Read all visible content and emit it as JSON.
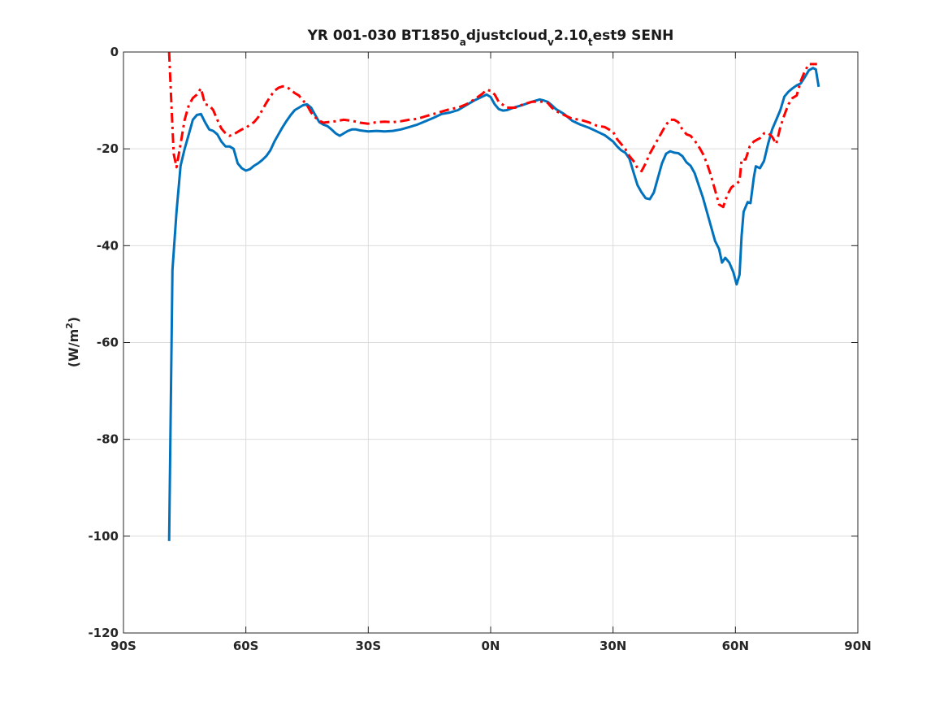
{
  "chart_data": {
    "type": "line",
    "title": {
      "prefix": "YR 001-030 BT1850",
      "sub1": "a",
      "mid1": "djustcloud",
      "sub2": "v",
      "mid2": "2.10",
      "sub3": "t",
      "suffix": "est9 SENH"
    },
    "ylabel": {
      "main": "(W/m",
      "sup": "2",
      "close": ")"
    },
    "xlim": [
      -90,
      90
    ],
    "ylim": [
      -120,
      0
    ],
    "xticks": [
      {
        "value": -90,
        "label": "90S"
      },
      {
        "value": -60,
        "label": "60S"
      },
      {
        "value": -30,
        "label": "30S"
      },
      {
        "value": 0,
        "label": "0N"
      },
      {
        "value": 30,
        "label": "30N"
      },
      {
        "value": 60,
        "label": "60N"
      },
      {
        "value": 90,
        "label": "90N"
      }
    ],
    "yticks": [
      {
        "value": 0,
        "label": "0"
      },
      {
        "value": -20,
        "label": "-20"
      },
      {
        "value": -40,
        "label": "-40"
      },
      {
        "value": -60,
        "label": "-60"
      },
      {
        "value": -80,
        "label": "-80"
      },
      {
        "value": -100,
        "label": "-100"
      },
      {
        "value": -120,
        "label": "-120"
      }
    ],
    "grid": true,
    "series": [
      {
        "color": "#0072BD",
        "dash": "solid",
        "points": [
          [
            -78.8,
            -101
          ],
          [
            -78.0,
            -45
          ],
          [
            -77.0,
            -33
          ],
          [
            -76.0,
            -23.5
          ],
          [
            -75.0,
            -20
          ],
          [
            -74.0,
            -17
          ],
          [
            -73.0,
            -14
          ],
          [
            -72.0,
            -13
          ],
          [
            -71.0,
            -12.8
          ],
          [
            -70.0,
            -14.5
          ],
          [
            -69.0,
            -16
          ],
          [
            -68.0,
            -16.3
          ],
          [
            -67.0,
            -17
          ],
          [
            -66.0,
            -18.5
          ],
          [
            -65.0,
            -19.5
          ],
          [
            -64.0,
            -19.5
          ],
          [
            -63.0,
            -20
          ],
          [
            -62.0,
            -23
          ],
          [
            -61.0,
            -24
          ],
          [
            -60.0,
            -24.5
          ],
          [
            -59.0,
            -24.2
          ],
          [
            -58.0,
            -23.5
          ],
          [
            -57.0,
            -23
          ],
          [
            -56.0,
            -22.3
          ],
          [
            -55.0,
            -21.5
          ],
          [
            -54.0,
            -20.3
          ],
          [
            -53.0,
            -18.5
          ],
          [
            -52.0,
            -17
          ],
          [
            -51.0,
            -15.5
          ],
          [
            -50.0,
            -14.2
          ],
          [
            -49.0,
            -13
          ],
          [
            -48.0,
            -12
          ],
          [
            -47.0,
            -11.5
          ],
          [
            -46.0,
            -11
          ],
          [
            -45.0,
            -10.8
          ],
          [
            -44.0,
            -11.5
          ],
          [
            -43.0,
            -13
          ],
          [
            -42.0,
            -14.5
          ],
          [
            -41.0,
            -15
          ],
          [
            -40.0,
            -15.3
          ],
          [
            -39.0,
            -16
          ],
          [
            -38.0,
            -16.8
          ],
          [
            -37.0,
            -17.3
          ],
          [
            -36.0,
            -16.8
          ],
          [
            -35.0,
            -16.3
          ],
          [
            -34.0,
            -16
          ],
          [
            -33.0,
            -16
          ],
          [
            -32.0,
            -16.2
          ],
          [
            -31.0,
            -16.3
          ],
          [
            -30.0,
            -16.4
          ],
          [
            -28.0,
            -16.3
          ],
          [
            -26.0,
            -16.4
          ],
          [
            -24.0,
            -16.3
          ],
          [
            -22.0,
            -16
          ],
          [
            -20.0,
            -15.5
          ],
          [
            -18.0,
            -15
          ],
          [
            -16.0,
            -14.3
          ],
          [
            -14.0,
            -13.6
          ],
          [
            -12.0,
            -12.8
          ],
          [
            -10.0,
            -12.5
          ],
          [
            -8.0,
            -12
          ],
          [
            -6.0,
            -11
          ],
          [
            -4.0,
            -10
          ],
          [
            -2.0,
            -9.2
          ],
          [
            -1.0,
            -8.8
          ],
          [
            0.0,
            -9.3
          ],
          [
            1.0,
            -10.8
          ],
          [
            2.0,
            -11.8
          ],
          [
            3.0,
            -12.1
          ],
          [
            4.0,
            -12
          ],
          [
            6.0,
            -11.4
          ],
          [
            8.0,
            -10.9
          ],
          [
            10.0,
            -10.3
          ],
          [
            12.0,
            -9.8
          ],
          [
            13.0,
            -10
          ],
          [
            14.0,
            -10.3
          ],
          [
            15.0,
            -11
          ],
          [
            16.0,
            -11.8
          ],
          [
            18.0,
            -12.8
          ],
          [
            20.0,
            -14.2
          ],
          [
            22.0,
            -15
          ],
          [
            24.0,
            -15.6
          ],
          [
            26.0,
            -16.4
          ],
          [
            28.0,
            -17.2
          ],
          [
            30.0,
            -18.5
          ],
          [
            31.0,
            -19.5
          ],
          [
            32.0,
            -20.3
          ],
          [
            33.0,
            -20.8
          ],
          [
            34.0,
            -22
          ],
          [
            35.0,
            -24.8
          ],
          [
            36.0,
            -27.5
          ],
          [
            37.0,
            -29
          ],
          [
            38.0,
            -30.2
          ],
          [
            39.0,
            -30.4
          ],
          [
            40.0,
            -29
          ],
          [
            41.0,
            -26
          ],
          [
            42.0,
            -23
          ],
          [
            43.0,
            -21
          ],
          [
            44.0,
            -20.5
          ],
          [
            45.0,
            -20.8
          ],
          [
            46.0,
            -20.9
          ],
          [
            47.0,
            -21.5
          ],
          [
            48.0,
            -22.8
          ],
          [
            49.0,
            -23.5
          ],
          [
            50.0,
            -25
          ],
          [
            51.0,
            -27.5
          ],
          [
            52.0,
            -30
          ],
          [
            53.0,
            -33
          ],
          [
            54.0,
            -36
          ],
          [
            55.0,
            -39
          ],
          [
            56.0,
            -40.7
          ],
          [
            56.7,
            -43.5
          ],
          [
            57.5,
            -42.5
          ],
          [
            58.5,
            -43.5
          ],
          [
            59.5,
            -45.5
          ],
          [
            60.3,
            -48
          ],
          [
            61.0,
            -46
          ],
          [
            61.5,
            -38
          ],
          [
            62.0,
            -33
          ],
          [
            63.0,
            -31
          ],
          [
            63.7,
            -31.2
          ],
          [
            64.5,
            -26
          ],
          [
            65.0,
            -23.6
          ],
          [
            66.0,
            -24
          ],
          [
            67.0,
            -22.5
          ],
          [
            68.0,
            -19
          ],
          [
            69.0,
            -16
          ],
          [
            70.0,
            -14
          ],
          [
            71.0,
            -12
          ],
          [
            72.0,
            -9.2
          ],
          [
            73.0,
            -8.2
          ],
          [
            74.0,
            -7.5
          ],
          [
            75.0,
            -6.9
          ],
          [
            76.0,
            -6.5
          ],
          [
            77.0,
            -5.2
          ],
          [
            78.0,
            -3.8
          ],
          [
            79.0,
            -3.3
          ],
          [
            79.7,
            -3.6
          ],
          [
            80.4,
            -7.2
          ]
        ]
      },
      {
        "color": "#FF0000",
        "dash": "dashdot",
        "points": [
          [
            -78.8,
            0
          ],
          [
            -78.3,
            -10
          ],
          [
            -77.7,
            -21
          ],
          [
            -77.0,
            -23.8
          ],
          [
            -76.0,
            -19
          ],
          [
            -75.0,
            -14
          ],
          [
            -74.0,
            -11
          ],
          [
            -73.0,
            -9.5
          ],
          [
            -72.0,
            -8.8
          ],
          [
            -71.0,
            -7.5
          ],
          [
            -70.0,
            -10.8
          ],
          [
            -69.0,
            -11
          ],
          [
            -68.0,
            -12
          ],
          [
            -67.0,
            -14
          ],
          [
            -66.0,
            -15.8
          ],
          [
            -65.0,
            -16.8
          ],
          [
            -64.0,
            -17.3
          ],
          [
            -63.0,
            -17
          ],
          [
            -62.0,
            -16.5
          ],
          [
            -61.0,
            -16
          ],
          [
            -60.0,
            -15.7
          ],
          [
            -59.0,
            -15
          ],
          [
            -58.0,
            -14.5
          ],
          [
            -57.0,
            -13.5
          ],
          [
            -56.0,
            -12
          ],
          [
            -55.0,
            -10.5
          ],
          [
            -54.0,
            -9.2
          ],
          [
            -53.0,
            -8
          ],
          [
            -52.0,
            -7.4
          ],
          [
            -51.0,
            -7.1
          ],
          [
            -50.0,
            -7.2
          ],
          [
            -49.0,
            -7.8
          ],
          [
            -48.0,
            -8.5
          ],
          [
            -47.0,
            -9
          ],
          [
            -46.0,
            -10
          ],
          [
            -45.0,
            -11
          ],
          [
            -44.0,
            -12.5
          ],
          [
            -43.0,
            -13.5
          ],
          [
            -42.0,
            -14.2
          ],
          [
            -41.0,
            -14.6
          ],
          [
            -40.0,
            -14.5
          ],
          [
            -38.0,
            -14.3
          ],
          [
            -36.0,
            -14
          ],
          [
            -34.0,
            -14.2
          ],
          [
            -32.0,
            -14.6
          ],
          [
            -30.0,
            -14.8
          ],
          [
            -28.0,
            -14.5
          ],
          [
            -26.0,
            -14.4
          ],
          [
            -24.0,
            -14.5
          ],
          [
            -22.0,
            -14.3
          ],
          [
            -20.0,
            -14
          ],
          [
            -18.0,
            -13.8
          ],
          [
            -16.0,
            -13.3
          ],
          [
            -14.0,
            -12.8
          ],
          [
            -12.0,
            -12.3
          ],
          [
            -10.0,
            -11.8
          ],
          [
            -8.0,
            -11.5
          ],
          [
            -6.0,
            -10.8
          ],
          [
            -4.0,
            -9.8
          ],
          [
            -2.0,
            -8.6
          ],
          [
            -1.0,
            -7.8
          ],
          [
            0.0,
            -8
          ],
          [
            1.0,
            -8.8
          ],
          [
            2.0,
            -10.3
          ],
          [
            4.0,
            -11.5
          ],
          [
            6.0,
            -11.5
          ],
          [
            8.0,
            -10.8
          ],
          [
            10.0,
            -10.3
          ],
          [
            12.0,
            -10.2
          ],
          [
            14.0,
            -10.5
          ],
          [
            15.0,
            -11.5
          ],
          [
            16.0,
            -12.2
          ],
          [
            18.0,
            -13
          ],
          [
            20.0,
            -13.8
          ],
          [
            22.0,
            -14
          ],
          [
            24.0,
            -14.5
          ],
          [
            26.0,
            -15.2
          ],
          [
            28.0,
            -15.5
          ],
          [
            30.0,
            -16.5
          ],
          [
            31.0,
            -18
          ],
          [
            32.0,
            -19
          ],
          [
            33.0,
            -20
          ],
          [
            34.0,
            -21.5
          ],
          [
            35.0,
            -22.5
          ],
          [
            36.0,
            -24
          ],
          [
            37.0,
            -24.6
          ],
          [
            38.0,
            -23
          ],
          [
            39.0,
            -21
          ],
          [
            40.0,
            -19.5
          ],
          [
            41.0,
            -18
          ],
          [
            42.0,
            -16.5
          ],
          [
            43.0,
            -15
          ],
          [
            44.0,
            -14
          ],
          [
            45.0,
            -14
          ],
          [
            46.0,
            -14.5
          ],
          [
            47.0,
            -16
          ],
          [
            48.0,
            -17
          ],
          [
            49.0,
            -17.3
          ],
          [
            50.0,
            -18.3
          ],
          [
            51.0,
            -19.5
          ],
          [
            52.0,
            -21
          ],
          [
            53.0,
            -23
          ],
          [
            54.0,
            -25.5
          ],
          [
            55.0,
            -28.5
          ],
          [
            56.0,
            -31.5
          ],
          [
            57.0,
            -32
          ],
          [
            58.0,
            -29.5
          ],
          [
            59.0,
            -28
          ],
          [
            60.0,
            -27.3
          ],
          [
            61.0,
            -26.7
          ],
          [
            61.5,
            -22.2
          ],
          [
            62.5,
            -22.2
          ],
          [
            63.5,
            -19.5
          ],
          [
            64.5,
            -18.5
          ],
          [
            65.5,
            -18
          ],
          [
            66.0,
            -17.8
          ],
          [
            67.0,
            -16.8
          ],
          [
            68.0,
            -16.7
          ],
          [
            69.0,
            -17.5
          ],
          [
            70.0,
            -19
          ],
          [
            71.0,
            -15.5
          ],
          [
            72.0,
            -13
          ],
          [
            73.0,
            -10.8
          ],
          [
            74.0,
            -9.5
          ],
          [
            75.0,
            -9
          ],
          [
            76.0,
            -6
          ],
          [
            77.0,
            -4
          ],
          [
            78.0,
            -2.5
          ],
          [
            79.0,
            -2.5
          ],
          [
            80.0,
            -2.5
          ]
        ]
      }
    ]
  }
}
